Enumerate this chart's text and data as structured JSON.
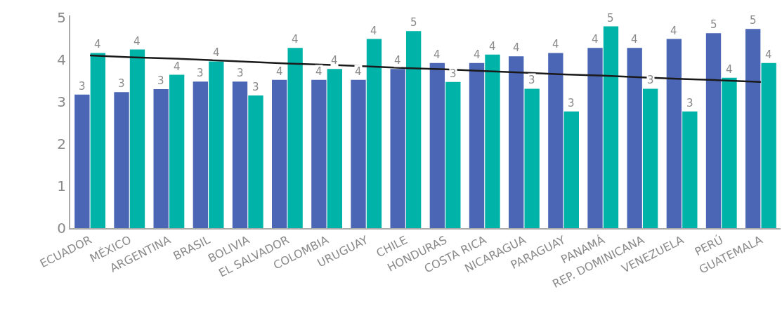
{
  "chart_data": {
    "type": "bar",
    "categories": [
      "ECUADOR",
      "MÉXICO",
      "ARGENTINA",
      "BRASIL",
      "BOLIVIA",
      "EL SALVADOR",
      "COLOMBIA",
      "URUGUAY",
      "CHILE",
      "HONDURAS",
      "COSTA RICA",
      "NICARAGUA",
      "PARAGUAY",
      "PANAMÁ",
      "REP. DOMINICANA",
      "VENEZUELA",
      "PERÚ",
      "GUATEMALA"
    ],
    "series": [
      {
        "color": "#4a66b5",
        "values": [
          3.17,
          3.23,
          3.3,
          3.48,
          3.48,
          3.52,
          3.52,
          3.52,
          3.78,
          3.92,
          3.92,
          4.08,
          4.16,
          4.28,
          4.28,
          4.49,
          4.63,
          4.73
        ],
        "value_labels": [
          "3",
          "3",
          "3",
          "3",
          "3",
          "4",
          "4",
          "4",
          "4",
          "4",
          "4",
          "4",
          "4",
          "4",
          "4",
          "4",
          "5",
          "5"
        ]
      },
      {
        "color": "#00b3a8",
        "values": [
          4.16,
          4.24,
          3.64,
          3.96,
          3.15,
          4.28,
          3.78,
          4.49,
          4.68,
          3.47,
          4.12,
          3.31,
          2.77,
          4.79,
          3.31,
          2.77,
          3.57,
          3.92
        ],
        "value_labels": [
          "4",
          "4",
          "4",
          "4",
          "3",
          "4",
          "4",
          "4",
          "5",
          "3",
          "4",
          "3",
          "3",
          "5",
          "3",
          "3",
          "4",
          "4"
        ]
      },
      {
        "type": "line",
        "color": "#1a1a1a",
        "values": [
          4.1,
          4.06,
          4.03,
          3.99,
          3.95,
          3.91,
          3.88,
          3.84,
          3.8,
          3.77,
          3.73,
          3.69,
          3.65,
          3.62,
          3.58,
          3.54,
          3.51,
          3.47
        ]
      }
    ],
    "ylim": [
      0,
      5.05
    ],
    "yticks": [
      0,
      1,
      2,
      3,
      4,
      5
    ],
    "grid": false,
    "legend": false
  }
}
